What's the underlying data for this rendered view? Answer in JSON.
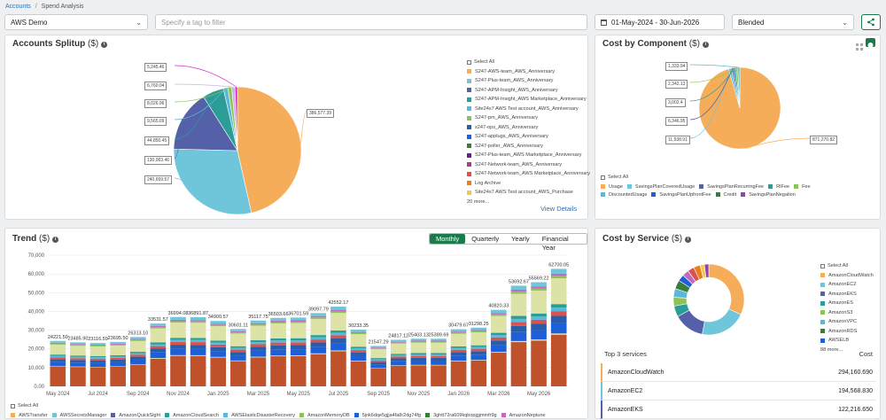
{
  "breadcrumb": {
    "root": "Accounts",
    "sep": "/",
    "current": "Spend Analysis"
  },
  "toolbar": {
    "account_select": "AWS Demo",
    "tag_filter_placeholder": "Specify a tag to filter",
    "date_range": "01-May-2024 - 30-Jun-2026",
    "cost_type": "Blended"
  },
  "accounts_splitup": {
    "title": "Accounts Splitup",
    "unit": "($)",
    "select_all": "Select All",
    "more": "20 more...",
    "view_details": "View Details",
    "slices": [
      {
        "value": "386,577.39",
        "color": "#f6ad5a"
      },
      {
        "value": "240,659.57",
        "color": "#6fc6da"
      },
      {
        "value": "130,063.46",
        "color": "#5460a8"
      },
      {
        "value": "44,850.45",
        "color": "#2a9d96"
      },
      {
        "value": "9,565.09",
        "color": "#5cb8d8"
      },
      {
        "value": "8,026.96",
        "color": "#8dc25a"
      },
      {
        "value": "6,760.04",
        "color": "#c8b4e0"
      },
      {
        "value": "5,245.46",
        "color": "#d02fc7"
      }
    ],
    "legend": [
      {
        "label": "S247-AWS-team_AWS_Anniversary",
        "color": "#f6ad5a"
      },
      {
        "label": "S247-Plus-team_AWS_Anniversary",
        "color": "#6fc6da"
      },
      {
        "label": "S247-APM-Insight_AWS_Anniversary",
        "color": "#5460a8"
      },
      {
        "label": "S247-APM-Insight_AWS Marketplace_Anniversary",
        "color": "#2a9d96"
      },
      {
        "label": "Site24x7 AWS Test account_AWS_Anniversary",
        "color": "#5cb8d8"
      },
      {
        "label": "S247-pm_AWS_Anniversary",
        "color": "#8dc25a"
      },
      {
        "label": "s247-ops_AWS_Anniversary",
        "color": "#2b5ca8"
      },
      {
        "label": "S247-applugs_AWS_Anniversary",
        "color": "#1d5fd6"
      },
      {
        "label": "S247-poller_AWS_Anniversary",
        "color": "#3a7d3a"
      },
      {
        "label": "S247-Plus-team_AWS Marketplace_Anniversary",
        "color": "#6a1b9a"
      },
      {
        "label": "S247-Network-team_AWS_Anniversary",
        "color": "#b03a8a"
      },
      {
        "label": "S247-Network-team_AWS Marketplace_Anniversary",
        "color": "#d9534f"
      },
      {
        "label": "Log Archive",
        "color": "#e67e22"
      },
      {
        "label": "Site24x7 AWS Test account_AWS_Purchase",
        "color": "#f2c94c"
      }
    ]
  },
  "cost_by_component": {
    "title": "Cost by Component",
    "unit": "($)",
    "select_all": "Select All",
    "slices": [
      {
        "value": "871,270.82",
        "color": "#f6ad5a"
      },
      {
        "value": "11,938.91",
        "color": "#6fc6da"
      },
      {
        "value": "6,346.95",
        "color": "#5460a8"
      },
      {
        "value": "3,002.4",
        "color": "#2a9d96"
      },
      {
        "value": "2,342.13",
        "color": "#8dc25a"
      },
      {
        "value": "1,333.94",
        "color": "#5cb8d8"
      }
    ],
    "legend": [
      {
        "label": "Usage",
        "color": "#f6ad5a"
      },
      {
        "label": "SavingsPlanCoveredUsage",
        "color": "#6fc6da"
      },
      {
        "label": "SavingsPlanRecurringFee",
        "color": "#5460a8"
      },
      {
        "label": "RIFee",
        "color": "#2a9d96"
      },
      {
        "label": "Fee",
        "color": "#8dc25a"
      },
      {
        "label": "DiscountedUsage",
        "color": "#5cb8d8"
      },
      {
        "label": "SavingsPlanUpfrontFee",
        "color": "#1d5fd6"
      },
      {
        "label": "Credit",
        "color": "#3a7d3a"
      },
      {
        "label": "SavingsPlanNegation",
        "color": "#8e44ad"
      }
    ]
  },
  "trend": {
    "title": "Trend",
    "unit": "($)",
    "tabs": [
      "Monthly",
      "Quarterly",
      "Yearly",
      "Financial Year"
    ],
    "active_tab": "Monthly",
    "select_all": "Select All",
    "legend": [
      {
        "label": "AWSTransfer",
        "color": "#f6ad5a"
      },
      {
        "label": "AWSSecretsManager",
        "color": "#6fc6da"
      },
      {
        "label": "AmazonQuickSight",
        "color": "#5460a8"
      },
      {
        "label": "AmazonCloudSearch",
        "color": "#2a9d96"
      },
      {
        "label": "AWSElasticDisasterRecovery",
        "color": "#5cb8d8"
      },
      {
        "label": "AmazonMemoryDB",
        "color": "#8dc25a"
      },
      {
        "label": "5jnk6dqe5gjja4fa8r2dg74fg",
        "color": "#1d5fd6"
      },
      {
        "label": "3ghtt72ra609kqbopjgjmmfr9g",
        "color": "#3a7d3a"
      },
      {
        "label": "AmazonNeptune",
        "color": "#c06bc0"
      }
    ]
  },
  "chart_data": {
    "type": "bar",
    "stacked": true,
    "title": "Trend",
    "ylim": [
      0,
      70000
    ],
    "yticks": [
      "0.00",
      "10,000",
      "20,000",
      "30,000",
      "40,000",
      "50,000",
      "60,000",
      "70,000"
    ],
    "xtick_labels": [
      "May 2024",
      "Jul 2024",
      "Sep 2024",
      "Nov 2024",
      "Jan 2025",
      "Mar 2025",
      "May 2025",
      "Jul 2025",
      "Sep 2025",
      "Nov 2025",
      "Jan 2026",
      "Mar 2026",
      "May 2026"
    ],
    "categories": [
      "May 2024",
      "Jun 2024",
      "Jul 2024",
      "Aug 2024",
      "Sep 2024",
      "Oct 2024",
      "Nov 2024",
      "Dec 2024",
      "Jan 2025",
      "Feb 2025",
      "Mar 2025",
      "Apr 2025",
      "May 2025",
      "Jun 2025",
      "Jul 2025",
      "Aug 2025",
      "Sep 2025",
      "Oct 2025",
      "Nov 2025",
      "Dec 2025",
      "Jan 2026",
      "Feb 2026",
      "Mar 2026",
      "Apr 2026",
      "May 2026",
      "Jun 2026"
    ],
    "values": [
      24221.5,
      23485.9,
      23116.59,
      23695.5,
      26313.1,
      33531.57,
      36994.08,
      36891.87,
      34900.57,
      30601.11,
      35117.75,
      36503.66,
      36701.59,
      39097.79,
      42552.17,
      30233.35,
      21547.29,
      24817.12,
      25403.13,
      25389.69,
      30479.67,
      31298.25,
      40820.33,
      53692.67,
      55569.22,
      62700.05
    ],
    "data_labels": [
      "24221.50",
      "23485.90",
      "23116.59",
      "23695.50",
      "26313.10",
      "33531.57",
      "36994.08",
      "36891.87",
      "34900.57",
      "30601.11",
      "35117.75",
      "36503.66",
      "36701.59",
      "39097.79",
      "42552.17",
      "30233.35",
      "21547.29",
      "24817.12",
      "25403.13",
      "25389.69",
      "30479.67",
      "31298.25",
      "40820.33",
      "53692.67",
      "55569.22",
      "62700.05"
    ]
  },
  "cost_by_service": {
    "title": "Cost by Service",
    "unit": "($)",
    "select_all": "Select All",
    "more": "88 more...",
    "slices": [
      {
        "share": 0.32,
        "color": "#f6ad5a"
      },
      {
        "share": 0.21,
        "color": "#6fc6da"
      },
      {
        "share": 0.14,
        "color": "#5460a8"
      },
      {
        "share": 0.05,
        "color": "#2a9d96"
      },
      {
        "share": 0.04,
        "color": "#8dc25a"
      },
      {
        "share": 0.04,
        "color": "#5cb8d8"
      },
      {
        "share": 0.04,
        "color": "#3a7d3a"
      },
      {
        "share": 0.03,
        "color": "#1d5fd6"
      },
      {
        "share": 0.03,
        "color": "#c06bc0"
      },
      {
        "share": 0.03,
        "color": "#d9534f"
      },
      {
        "share": 0.03,
        "color": "#e67e22"
      },
      {
        "share": 0.02,
        "color": "#f2c94c"
      },
      {
        "share": 0.02,
        "color": "#8e44ad"
      }
    ],
    "legend": [
      {
        "label": "AmazonCloudWatch",
        "color": "#f6ad5a"
      },
      {
        "label": "AmazonEC2",
        "color": "#6fc6da"
      },
      {
        "label": "AmazonEKS",
        "color": "#5460a8"
      },
      {
        "label": "AmazonES",
        "color": "#2a9d96"
      },
      {
        "label": "AmazonS3",
        "color": "#8dc25a"
      },
      {
        "label": "AmazonVPC",
        "color": "#5cb8d8"
      },
      {
        "label": "AmazonRDS",
        "color": "#3a7d3a"
      },
      {
        "label": "AWSELB",
        "color": "#1d5fd6"
      }
    ],
    "top_header": "Top 3 services",
    "cost_header": "Cost",
    "top": [
      {
        "name": "AmazonCloudWatch",
        "cost": "294,160.690",
        "color": "#f6ad5a"
      },
      {
        "name": "AmazonEC2",
        "cost": "194,568.830",
        "color": "#6fc6da"
      },
      {
        "name": "AmazonEKS",
        "cost": "122,216.650",
        "color": "#5460a8"
      }
    ]
  }
}
